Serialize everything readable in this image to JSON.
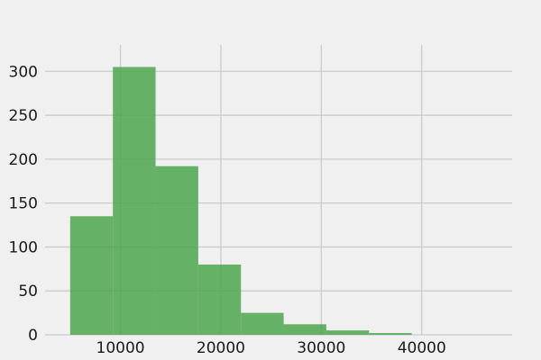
{
  "chart_data": {
    "type": "bar",
    "subtype": "histogram",
    "title": "",
    "xlabel": "",
    "ylabel": "",
    "bin_edges": [
      5000,
      9250,
      13500,
      17750,
      22000,
      26250,
      30500,
      34750,
      39000
    ],
    "values": [
      135,
      305,
      192,
      80,
      25,
      12,
      5,
      2
    ],
    "xlim": [
      2500,
      49000
    ],
    "ylim": [
      0,
      330
    ],
    "x_ticks": [
      10000,
      20000,
      30000,
      40000
    ],
    "y_ticks": [
      0,
      50,
      100,
      150,
      200,
      250,
      300
    ],
    "x_tick_labels": [
      "10000",
      "20000",
      "30000",
      "40000"
    ],
    "y_tick_labels": [
      "0",
      "50",
      "100",
      "150",
      "200",
      "250",
      "300"
    ],
    "bar_color": "#4ca64c",
    "bar_opacity": 0.85,
    "grid": true,
    "legend": "none",
    "background": "#f0f0f0"
  }
}
